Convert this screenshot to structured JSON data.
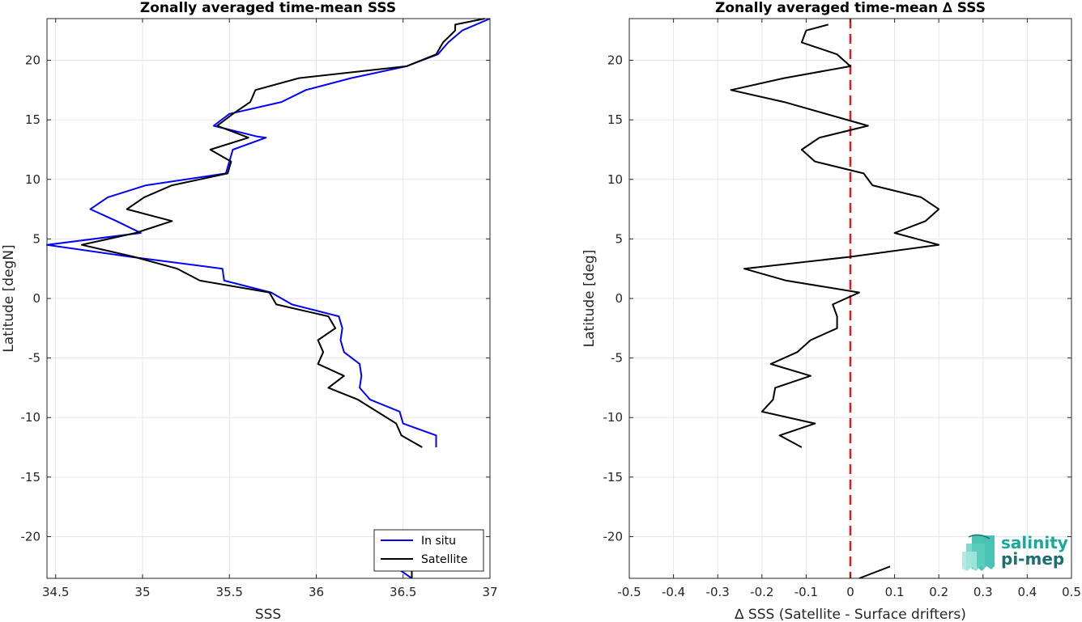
{
  "chart_data": [
    {
      "type": "line",
      "title": "Zonally averaged time-mean SSS",
      "xlabel": "SSS",
      "ylabel": "Latitude [degN]",
      "xlim": [
        34.45,
        37.0
      ],
      "ylim": [
        -23.5,
        23.5
      ],
      "xticks": [
        34.5,
        35,
        35.5,
        36,
        36.5,
        37
      ],
      "xtick_labels": [
        "34.5",
        "35",
        "35.5",
        "36",
        "36.5",
        "37"
      ],
      "yticks": [
        -20,
        -15,
        -10,
        -5,
        0,
        5,
        10,
        15,
        20
      ],
      "ytick_labels": [
        "-20",
        "-15",
        "-10",
        "-5",
        "0",
        "5",
        "10",
        "15",
        "20"
      ],
      "grid": true,
      "legend_position": "bottom-right",
      "series": [
        {
          "name": "In situ",
          "color": "#0000ff",
          "points": [
            [
              37.0,
              23.5
            ],
            [
              36.84,
              22.5
            ],
            [
              36.76,
              21.5
            ],
            [
              36.7,
              20.5
            ],
            [
              36.52,
              19.5
            ],
            [
              36.2,
              18.5
            ],
            [
              35.94,
              17.5
            ],
            [
              35.8,
              16.5
            ],
            [
              35.5,
              15.5
            ],
            [
              35.41,
              14.5
            ],
            [
              35.66,
              13.6
            ],
            [
              35.71,
              13.5
            ],
            [
              35.52,
              12.5
            ],
            [
              35.5,
              11.5
            ],
            [
              35.48,
              10.5
            ],
            [
              35.02,
              9.5
            ],
            [
              34.8,
              8.5
            ],
            [
              34.7,
              7.5
            ],
            [
              34.85,
              6.5
            ],
            [
              34.99,
              5.5
            ],
            [
              34.45,
              4.5
            ],
            [
              34.93,
              3.5
            ],
            [
              35.46,
              2.5
            ],
            [
              35.47,
              1.5
            ],
            [
              35.74,
              0.5
            ],
            [
              35.86,
              -0.5
            ],
            [
              36.13,
              -1.5
            ],
            [
              36.15,
              -2.5
            ],
            [
              36.14,
              -3.5
            ],
            [
              36.16,
              -4.5
            ],
            [
              36.25,
              -5.5
            ],
            [
              36.26,
              -6.5
            ],
            [
              36.25,
              -7.5
            ],
            [
              36.31,
              -8.5
            ],
            [
              36.48,
              -9.5
            ],
            [
              36.5,
              -10.5
            ],
            [
              36.69,
              -11.5
            ],
            [
              36.69,
              -12.5
            ]
          ]
        },
        {
          "name": "Satellite",
          "color": "#000000",
          "points": [
            [
              36.97,
              23.5
            ],
            [
              36.8,
              23.0
            ],
            [
              36.8,
              22.5
            ],
            [
              36.73,
              21.5
            ],
            [
              36.69,
              20.5
            ],
            [
              36.52,
              19.5
            ],
            [
              35.9,
              18.5
            ],
            [
              35.65,
              17.5
            ],
            [
              35.62,
              16.5
            ],
            [
              35.52,
              15.5
            ],
            [
              35.43,
              14.5
            ],
            [
              35.61,
              13.5
            ],
            [
              35.39,
              12.5
            ],
            [
              35.51,
              11.5
            ],
            [
              35.49,
              10.5
            ],
            [
              35.17,
              9.5
            ],
            [
              35.01,
              8.5
            ],
            [
              34.91,
              7.5
            ],
            [
              35.17,
              6.5
            ],
            [
              34.96,
              5.5
            ],
            [
              34.65,
              4.5
            ],
            [
              34.95,
              3.5
            ],
            [
              35.2,
              2.5
            ],
            [
              35.33,
              1.5
            ],
            [
              35.73,
              0.5
            ],
            [
              35.77,
              -0.5
            ],
            [
              36.07,
              -1.5
            ],
            [
              36.11,
              -2.5
            ],
            [
              36.01,
              -3.5
            ],
            [
              36.04,
              -4.5
            ],
            [
              36.01,
              -5.5
            ],
            [
              36.16,
              -6.5
            ],
            [
              36.07,
              -7.5
            ],
            [
              36.24,
              -8.5
            ],
            [
              36.46,
              -10.5
            ],
            [
              36.49,
              -11.5
            ],
            [
              36.61,
              -12.5
            ]
          ]
        }
      ],
      "extra_segments": [
        {
          "color": "#0000ff",
          "points": [
            [
              36.46,
              -22.6
            ],
            [
              36.55,
              -23.5
            ]
          ]
        },
        {
          "color": "#000000",
          "points": [
            [
              36.55,
              -22.5
            ],
            [
              36.55,
              -23.5
            ]
          ]
        }
      ]
    },
    {
      "type": "line",
      "title": "Zonally averaged time-mean ∆ SSS",
      "xlabel": "∆ SSS (Satellite - Surface drifters)",
      "ylabel": "Latitude [deg]",
      "xlim": [
        -0.5,
        0.5
      ],
      "ylim": [
        -23.5,
        23.5
      ],
      "xticks": [
        -0.5,
        -0.4,
        -0.3,
        -0.2,
        -0.1,
        0,
        0.1,
        0.2,
        0.3,
        0.4,
        0.5
      ],
      "xtick_labels": [
        "-0.5",
        "-0.4",
        "-0.3",
        "-0.2",
        "-0.1",
        "0",
        "0.1",
        "0.2",
        "0.3",
        "0.4",
        "0.5"
      ],
      "yticks": [
        -20,
        -15,
        -10,
        -5,
        0,
        5,
        10,
        15,
        20
      ],
      "ytick_labels": [
        "-20",
        "-15",
        "-10",
        "-5",
        "0",
        "5",
        "10",
        "15",
        "20"
      ],
      "grid": true,
      "reference_line": {
        "x": 0,
        "color": "#e41a1c",
        "style": "dashed"
      },
      "series": [
        {
          "color": "#000000",
          "points": [
            [
              -0.05,
              23.0
            ],
            [
              -0.1,
              22.5
            ],
            [
              -0.11,
              21.5
            ],
            [
              -0.03,
              20.5
            ],
            [
              0.0,
              19.5
            ],
            [
              -0.15,
              18.5
            ],
            [
              -0.27,
              17.5
            ],
            [
              -0.15,
              16.5
            ],
            [
              0.04,
              14.5
            ],
            [
              -0.07,
              13.5
            ],
            [
              -0.11,
              12.5
            ],
            [
              -0.08,
              11.5
            ],
            [
              0.03,
              10.5
            ],
            [
              0.05,
              9.5
            ],
            [
              0.16,
              8.5
            ],
            [
              0.2,
              7.5
            ],
            [
              0.17,
              6.5
            ],
            [
              0.1,
              5.5
            ],
            [
              0.2,
              4.5
            ],
            [
              0.0,
              3.5
            ],
            [
              -0.24,
              2.5
            ],
            [
              -0.145,
              1.5
            ],
            [
              0.02,
              0.5
            ],
            [
              -0.04,
              -0.5
            ],
            [
              -0.03,
              -1.5
            ],
            [
              -0.03,
              -2.5
            ],
            [
              -0.09,
              -3.5
            ],
            [
              -0.12,
              -4.5
            ],
            [
              -0.18,
              -5.5
            ],
            [
              -0.09,
              -6.5
            ],
            [
              -0.17,
              -7.5
            ],
            [
              -0.175,
              -8.5
            ],
            [
              -0.2,
              -9.5
            ],
            [
              -0.08,
              -10.5
            ],
            [
              -0.16,
              -11.5
            ],
            [
              -0.11,
              -12.5
            ]
          ]
        }
      ],
      "extra_segments": [
        {
          "color": "#000000",
          "points": [
            [
              0.02,
              -23.5
            ],
            [
              0.09,
              -22.5
            ]
          ]
        }
      ]
    }
  ],
  "legend": {
    "items": [
      {
        "label": "In situ",
        "color": "#0000ff"
      },
      {
        "label": "Satellite",
        "color": "#000000"
      }
    ]
  },
  "logo": {
    "line1": "salinity",
    "line2": "pi-mep",
    "color1": "#19a99a",
    "color2": "#1a6f73"
  }
}
